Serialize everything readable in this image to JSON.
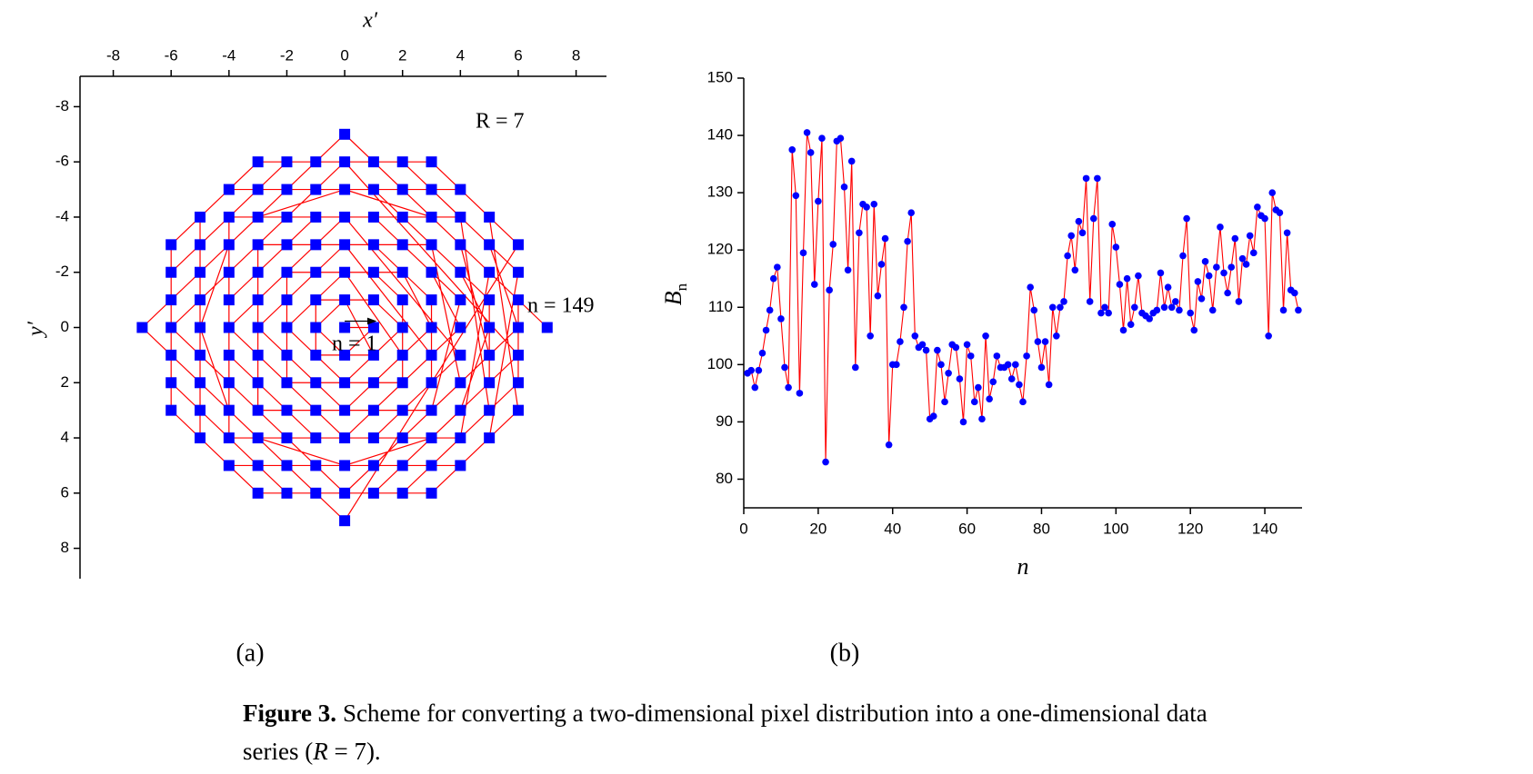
{
  "chart_data": [
    {
      "type": "scatter",
      "xlabel": "x′",
      "ylabel": "y′",
      "annotations": [
        "R = 7",
        "n = 149",
        "n = 1"
      ],
      "panel": "(a)",
      "marker_color": "#0000ff",
      "line_color": "#ff0000",
      "xlim": [
        -9.15,
        9.05
      ],
      "ylim": [
        -9.1,
        9.1
      ],
      "y_inverted": true,
      "xticks": [
        -8,
        -6,
        -4,
        -2,
        0,
        2,
        4,
        6,
        8
      ],
      "yticks": [
        -8,
        -6,
        -4,
        -2,
        0,
        2,
        4,
        6,
        8
      ],
      "x": [
        0,
        1,
        0,
        -1,
        0,
        1,
        -1,
        -1,
        1,
        2,
        0,
        -2,
        0,
        2,
        1,
        -1,
        -2,
        -2,
        -1,
        1,
        2,
        2,
        -2,
        -2,
        2,
        3,
        0,
        -3,
        0,
        3,
        1,
        -1,
        -3,
        -3,
        -1,
        1,
        3,
        3,
        2,
        -2,
        -3,
        -3,
        -2,
        2,
        3,
        4,
        0,
        -4,
        0,
        4,
        1,
        -1,
        -4,
        -4,
        -1,
        1,
        4,
        3,
        -3,
        -3,
        3,
        4,
        2,
        -2,
        -4,
        -4,
        -2,
        2,
        4,
        5,
        4,
        3,
        0,
        -3,
        -4,
        -5,
        -4,
        -3,
        0,
        3,
        4,
        5,
        1,
        -1,
        -5,
        -5,
        -1,
        1,
        5,
        5,
        2,
        -2,
        -5,
        -5,
        -2,
        2,
        5,
        4,
        -4,
        -4,
        4,
        5,
        3,
        -3,
        -5,
        -5,
        -3,
        3,
        5,
        6,
        0,
        -6,
        0,
        6,
        1,
        -1,
        -6,
        -6,
        -1,
        1,
        6,
        6,
        2,
        -2,
        -6,
        -6,
        -2,
        2,
        6,
        5,
        4,
        -4,
        -5,
        -5,
        -4,
        4,
        5,
        6,
        3,
        -3,
        -6,
        -6,
        -3,
        3,
        6,
        0,
        -7,
        0,
        7
      ],
      "y": [
        0,
        0,
        1,
        0,
        -1,
        1,
        1,
        -1,
        -1,
        0,
        2,
        0,
        -2,
        1,
        2,
        2,
        1,
        -1,
        -2,
        -2,
        -1,
        2,
        2,
        -2,
        -2,
        0,
        3,
        0,
        -3,
        1,
        3,
        3,
        1,
        -1,
        -3,
        -3,
        -1,
        2,
        3,
        3,
        2,
        -2,
        -3,
        -3,
        -2,
        0,
        4,
        0,
        -4,
        1,
        4,
        4,
        1,
        -1,
        -4,
        -4,
        -1,
        3,
        3,
        -3,
        -3,
        2,
        4,
        4,
        2,
        -2,
        -4,
        -4,
        -2,
        0,
        3,
        4,
        5,
        4,
        3,
        0,
        -3,
        -4,
        -5,
        -4,
        -3,
        1,
        5,
        5,
        1,
        -1,
        -5,
        -5,
        -1,
        2,
        5,
        5,
        2,
        -2,
        -5,
        -5,
        -2,
        4,
        4,
        -4,
        -4,
        3,
        5,
        5,
        3,
        -3,
        -5,
        -5,
        -3,
        0,
        6,
        0,
        -6,
        1,
        6,
        6,
        1,
        -1,
        -6,
        -6,
        -1,
        2,
        6,
        6,
        2,
        -2,
        -6,
        -6,
        -2,
        4,
        5,
        5,
        4,
        -4,
        -5,
        -5,
        -4,
        3,
        6,
        6,
        3,
        -3,
        -6,
        -6,
        -3,
        7,
        0,
        -7,
        0
      ]
    },
    {
      "type": "line",
      "xlabel": "n",
      "ylabel": "B",
      "ylabel_sub": "n",
      "panel": "(b)",
      "marker_color": "#0000ff",
      "line_color": "#ff0000",
      "xlim": [
        0,
        150
      ],
      "ylim": [
        75,
        150
      ],
      "xticks": [
        0,
        20,
        40,
        60,
        80,
        100,
        120,
        140
      ],
      "yticks": [
        80,
        90,
        100,
        110,
        120,
        130,
        140,
        150
      ],
      "x": [
        1,
        2,
        3,
        4,
        5,
        6,
        7,
        8,
        9,
        10,
        11,
        12,
        13,
        14,
        15,
        16,
        17,
        18,
        19,
        20,
        21,
        22,
        23,
        24,
        25,
        26,
        27,
        28,
        29,
        30,
        31,
        32,
        33,
        34,
        35,
        36,
        37,
        38,
        39,
        40,
        41,
        42,
        43,
        44,
        45,
        46,
        47,
        48,
        49,
        50,
        51,
        52,
        53,
        54,
        55,
        56,
        57,
        58,
        59,
        60,
        61,
        62,
        63,
        64,
        65,
        66,
        67,
        68,
        69,
        70,
        71,
        72,
        73,
        74,
        75,
        76,
        77,
        78,
        79,
        80,
        81,
        82,
        83,
        84,
        85,
        86,
        87,
        88,
        89,
        90,
        91,
        92,
        93,
        94,
        95,
        96,
        97,
        98,
        99,
        100,
        101,
        102,
        103,
        104,
        105,
        106,
        107,
        108,
        109,
        110,
        111,
        112,
        113,
        114,
        115,
        116,
        117,
        118,
        119,
        120,
        121,
        122,
        123,
        124,
        125,
        126,
        127,
        128,
        129,
        130,
        131,
        132,
        133,
        134,
        135,
        136,
        137,
        138,
        139,
        140,
        141,
        142,
        143,
        144,
        145,
        146,
        147,
        148,
        149
      ],
      "values": [
        98.5,
        99,
        96,
        99,
        102,
        106,
        109.5,
        115,
        117,
        108,
        99.5,
        96,
        137.5,
        129.5,
        95,
        119.5,
        140.5,
        137,
        114,
        128.5,
        139.5,
        83,
        113,
        121,
        139,
        139.5,
        131,
        116.5,
        135.5,
        99.5,
        123,
        128,
        127.5,
        105,
        128,
        112,
        117.5,
        122,
        86,
        100,
        100,
        104,
        110,
        121.5,
        126.5,
        105,
        103,
        103.5,
        102.5,
        90.5,
        91,
        102.5,
        100,
        93.5,
        98.5,
        103.5,
        103,
        97.5,
        90,
        103.5,
        101.5,
        93.5,
        96,
        90.5,
        105,
        94,
        97,
        101.5,
        99.5,
        99.5,
        100,
        97.5,
        100,
        96.5,
        93.5,
        101.5,
        113.5,
        109.5,
        104,
        99.5,
        104,
        96.5,
        110,
        105,
        110,
        111,
        119,
        122.5,
        116.5,
        125,
        123,
        132.5,
        111,
        125.5,
        132.5,
        109,
        110,
        109,
        124.5,
        120.5,
        114,
        106,
        115,
        107,
        110,
        115.5,
        109,
        108.5,
        108,
        109,
        109.5,
        116,
        110,
        113.5,
        110,
        111,
        109.5,
        119,
        125.5,
        109,
        106,
        114.5,
        111.5,
        118,
        115.5,
        109.5,
        117,
        124,
        116,
        112.5,
        117,
        122,
        111,
        118.5,
        117.5,
        122.5,
        119.5,
        127.5,
        126,
        125.5,
        105,
        130,
        127,
        126.5,
        109.5,
        123,
        113,
        112.5,
        109.5
      ]
    }
  ],
  "caption": {
    "label": "Figure 3.",
    "line1": "Scheme for converting a two-dimensional pixel distribution into a one-dimensional data",
    "line2a": "series (",
    "line2b": "R",
    "line2c": " = 7)."
  }
}
